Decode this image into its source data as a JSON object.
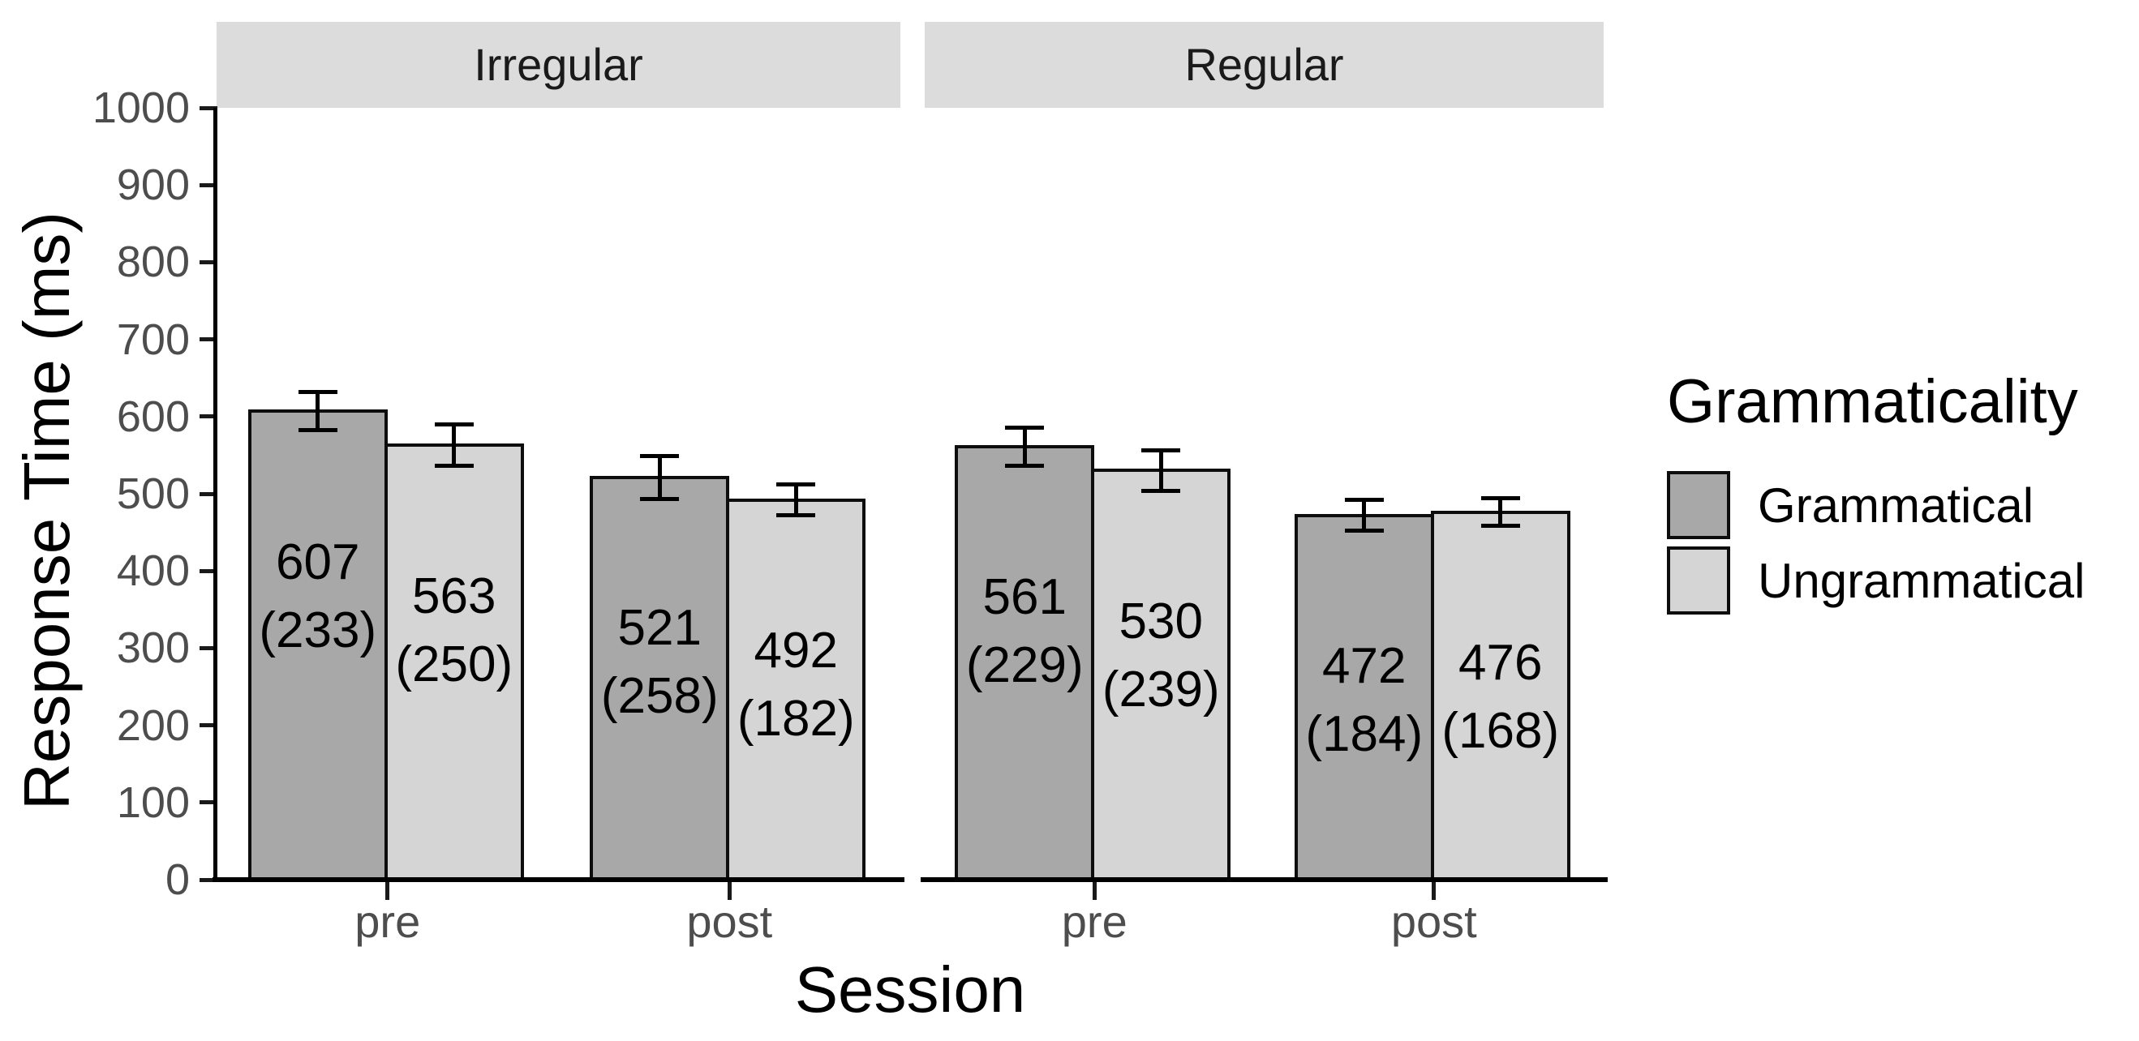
{
  "chart_data": {
    "type": "bar",
    "title": "",
    "faceting": {
      "facets": [
        "Irregular",
        "Regular"
      ]
    },
    "x": {
      "label": "Session",
      "categories": [
        "pre",
        "post"
      ]
    },
    "y": {
      "label": "Response Time (ms)",
      "min": 0,
      "max": 1000,
      "ticks": [
        {
          "value": 0,
          "label": "0"
        },
        {
          "value": 100,
          "label": "100"
        },
        {
          "value": 200,
          "label": "200"
        },
        {
          "value": 300,
          "label": "300"
        },
        {
          "value": 400,
          "label": "400"
        },
        {
          "value": 500,
          "label": "500"
        },
        {
          "value": 600,
          "label": "600"
        },
        {
          "value": 700,
          "label": "700"
        },
        {
          "value": 800,
          "label": "800"
        },
        {
          "value": 900,
          "label": "900"
        },
        {
          "value": 1000,
          "label": "1000"
        }
      ]
    },
    "legend": {
      "title": "Grammaticality",
      "position": "right",
      "entries": [
        {
          "label": "Grammatical",
          "fill": "#A8A8A8"
        },
        {
          "label": "Ungrammatical",
          "fill": "#D5D5D5"
        }
      ]
    },
    "bars": [
      {
        "facet": "Irregular",
        "session": "pre",
        "grammaticality": "Grammatical",
        "mean": 607,
        "sd": 233,
        "se_est": 25,
        "label_line1": "607",
        "label_line2": "(233)"
      },
      {
        "facet": "Irregular",
        "session": "pre",
        "grammaticality": "Ungrammatical",
        "mean": 563,
        "sd": 250,
        "se_est": 27,
        "label_line1": "563",
        "label_line2": "(250)"
      },
      {
        "facet": "Irregular",
        "session": "post",
        "grammaticality": "Grammatical",
        "mean": 521,
        "sd": 258,
        "se_est": 28,
        "label_line1": "521",
        "label_line2": "(258)"
      },
      {
        "facet": "Irregular",
        "session": "post",
        "grammaticality": "Ungrammatical",
        "mean": 492,
        "sd": 182,
        "se_est": 20,
        "label_line1": "492",
        "label_line2": "(182)"
      },
      {
        "facet": "Regular",
        "session": "pre",
        "grammaticality": "Grammatical",
        "mean": 561,
        "sd": 229,
        "se_est": 25,
        "label_line1": "561",
        "label_line2": "(229)"
      },
      {
        "facet": "Regular",
        "session": "pre",
        "grammaticality": "Ungrammatical",
        "mean": 530,
        "sd": 239,
        "se_est": 26,
        "label_line1": "530",
        "label_line2": "(239)"
      },
      {
        "facet": "Regular",
        "session": "post",
        "grammaticality": "Grammatical",
        "mean": 472,
        "sd": 184,
        "se_est": 20,
        "label_line1": "472",
        "label_line2": "(184)"
      },
      {
        "facet": "Regular",
        "session": "post",
        "grammaticality": "Ungrammatical",
        "mean": 476,
        "sd": 168,
        "se_est": 18,
        "label_line1": "476",
        "label_line2": "(168)"
      }
    ],
    "colors": {
      "bar_dark": "#A8A8A8",
      "bar_light": "#D5D5D5",
      "strip_bg": "#DCDCDC",
      "strip_text": "#1A1A1A",
      "axis_text": "#4D4D4D",
      "ink": "#000000"
    }
  }
}
